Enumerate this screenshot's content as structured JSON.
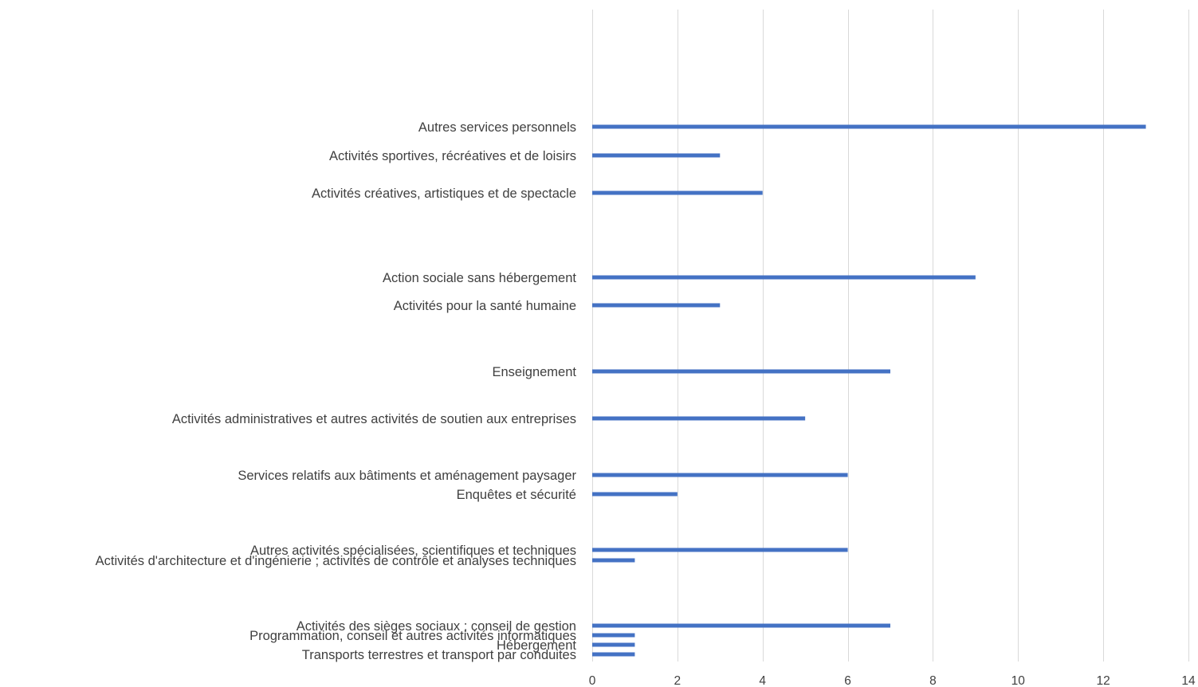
{
  "chart_data": {
    "type": "bar",
    "orientation": "horizontal",
    "title": "",
    "xlabel": "",
    "ylabel": "",
    "xlim": [
      0,
      14
    ],
    "x_ticks": [
      0,
      2,
      4,
      6,
      8,
      10,
      12,
      14
    ],
    "grid": "vertical",
    "legend": "none",
    "bar_color": "#4472c4",
    "grid_color": "#d9d9d9",
    "label_color": "#404040",
    "categories": [
      "Autres services personnels",
      "Activités sportives, récréatives et de loisirs",
      "Activités créatives, artistiques et de spectacle",
      "Action sociale sans hébergement",
      "Activités pour la santé humaine",
      "Enseignement",
      "Activités administratives et autres activités de soutien aux entreprises",
      "Services relatifs aux bâtiments et aménagement paysager",
      "Enquêtes et sécurité",
      "Autres activités spécialisées, scientifiques et techniques",
      "Activités d'architecture et d'ingénierie ; activités de contrôle et analyses techniques",
      "Activités des sièges sociaux ; conseil de gestion",
      "Programmation, conseil et autres activités informatiques",
      "Hébergement",
      "Transports terrestres et transport par conduites"
    ],
    "values": [
      13,
      3,
      4,
      9,
      3,
      7,
      5,
      6,
      2,
      6,
      1,
      7,
      1,
      1,
      1
    ]
  }
}
